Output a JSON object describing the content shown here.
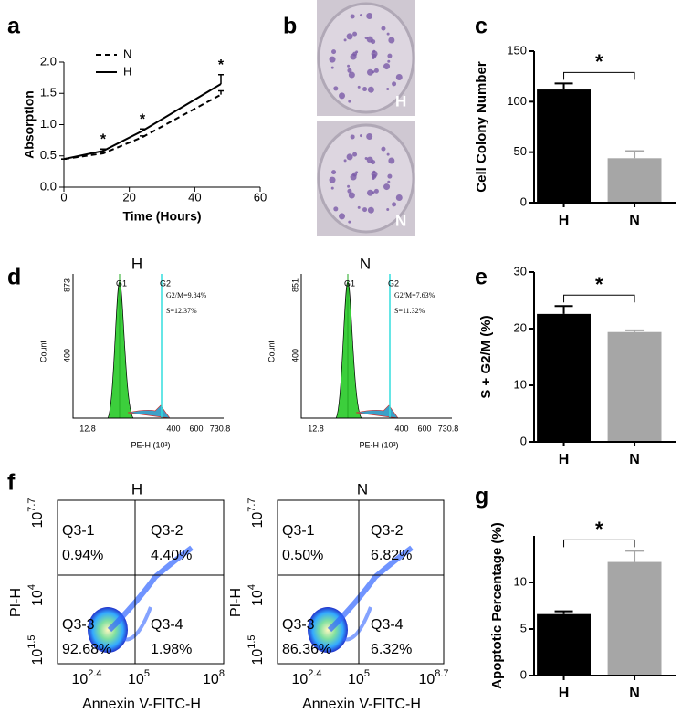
{
  "panel_labels": [
    "a",
    "b",
    "c",
    "d",
    "e",
    "f",
    "g"
  ],
  "chart_data": [
    {
      "type": "line",
      "x_label": "Time (Hours)",
      "y_label": "Absorption",
      "x": [
        0,
        12,
        24,
        48
      ],
      "series": [
        {
          "name": "N",
          "color": "#000000",
          "dashed": true,
          "values": [
            0.45,
            0.54,
            0.8,
            1.48
          ],
          "errors": [
            0,
            0.02,
            0.02,
            0.06
          ]
        },
        {
          "name": "H",
          "color": "#000000",
          "dashed": false,
          "values": [
            0.45,
            0.58,
            0.9,
            1.65
          ],
          "errors": [
            0,
            0.03,
            0.03,
            0.15
          ]
        }
      ],
      "annotations": [
        {
          "text": "*",
          "x": 12
        },
        {
          "text": "*",
          "x": 24
        },
        {
          "text": "*",
          "x": 48
        }
      ],
      "xlim": [
        0,
        60
      ],
      "xticks": [
        0,
        20,
        40,
        60
      ],
      "ylim": [
        0,
        2
      ],
      "yticks": [
        {
          "value": 0,
          "label": "0.0"
        },
        {
          "value": 0.5,
          "label": "0.5"
        },
        {
          "value": 1,
          "label": "1.0"
        },
        {
          "value": 1.5,
          "label": "1.5"
        },
        {
          "value": 2,
          "label": "2.0"
        }
      ]
    },
    {
      "type": "bar",
      "y_label": "Cell Colony Number",
      "categories": [
        "H",
        "N"
      ],
      "values": [
        112,
        44
      ],
      "errors": [
        6,
        7
      ],
      "colors": [
        "#000000",
        "#a6a6a6"
      ],
      "annotation": "*",
      "ylim": [
        0,
        150
      ],
      "yticks": [
        0,
        50,
        100,
        150
      ]
    },
    {
      "type": "bar",
      "y_label": "S + G2/M (%)",
      "categories": [
        "H",
        "N"
      ],
      "values": [
        22.6,
        19.4
      ],
      "errors": [
        1.4,
        0.3
      ],
      "colors": [
        "#000000",
        "#a6a6a6"
      ],
      "annotation": "*",
      "ylim": [
        0,
        30
      ],
      "yticks": [
        0,
        10,
        20,
        30
      ]
    },
    {
      "type": "bar",
      "y_label": "Apoptotic Percentage (%)",
      "categories": [
        "H",
        "N"
      ],
      "values": [
        6.6,
        12.2
      ],
      "errors": [
        0.3,
        1.2
      ],
      "colors": [
        "#000000",
        "#a6a6a6"
      ],
      "annotation": "*",
      "ylim": [
        0,
        15
      ],
      "yticks": [
        0,
        5,
        10
      ]
    }
  ],
  "plates": [
    "H",
    "N"
  ],
  "cell_cycle": [
    {
      "title": "H",
      "y_label": "Count",
      "y_tick_labels": [
        873,
        400
      ],
      "x_tick_labels": [
        12.8,
        400,
        600,
        730.8
      ],
      "x_label": "PE-H (10³)",
      "peaks": [
        "G1",
        "G2"
      ],
      "stats": [
        "G2/M=9.84%",
        "S=12.37%"
      ]
    },
    {
      "title": "N",
      "y_label": "Count",
      "y_tick_labels": [
        851,
        400
      ],
      "x_tick_labels": [
        12.8,
        400,
        600,
        730.8
      ],
      "x_label": "PE-H (10³)",
      "peaks": [
        "G1",
        "G2"
      ],
      "stats": [
        "G2/M=7.63%",
        "S=11.32%"
      ]
    }
  ],
  "flow": [
    {
      "title": "H",
      "y_label": "PI-H",
      "x_label": "Annexin V-FITC-H",
      "y_ticks": [
        {
          "base": "10",
          "exp": 7.7
        },
        {
          "base": "10",
          "exp": 4
        },
        {
          "base": "10",
          "exp": 1.5
        }
      ],
      "x_ticks": [
        {
          "base": "10",
          "exp": 2.4
        },
        {
          "base": "10",
          "exp": 5
        },
        {
          "base": "10",
          "exp": 8
        }
      ],
      "quadrants": [
        {
          "name": "Q3-1",
          "value": "0.94%"
        },
        {
          "name": "Q3-2",
          "value": "4.40%"
        },
        {
          "name": "Q3-3",
          "value": "92.68%"
        },
        {
          "name": "Q3-4",
          "value": "1.98%"
        }
      ]
    },
    {
      "title": "N",
      "y_label": "PI-H",
      "x_label": "Annexin V-FITC-H",
      "y_ticks": [
        {
          "base": "10",
          "exp": 7.7
        },
        {
          "base": "10",
          "exp": 4
        },
        {
          "base": "10",
          "exp": 1.5
        }
      ],
      "x_ticks": [
        {
          "base": "10",
          "exp": 2.4
        },
        {
          "base": "10",
          "exp": 5
        },
        {
          "base": "10",
          "exp": 8.7
        }
      ],
      "quadrants": [
        {
          "name": "Q3-1",
          "value": "0.50%"
        },
        {
          "name": "Q3-2",
          "value": "6.82%"
        },
        {
          "name": "Q3-3",
          "value": "86.36%"
        },
        {
          "name": "Q3-4",
          "value": "6.32%"
        }
      ]
    }
  ]
}
